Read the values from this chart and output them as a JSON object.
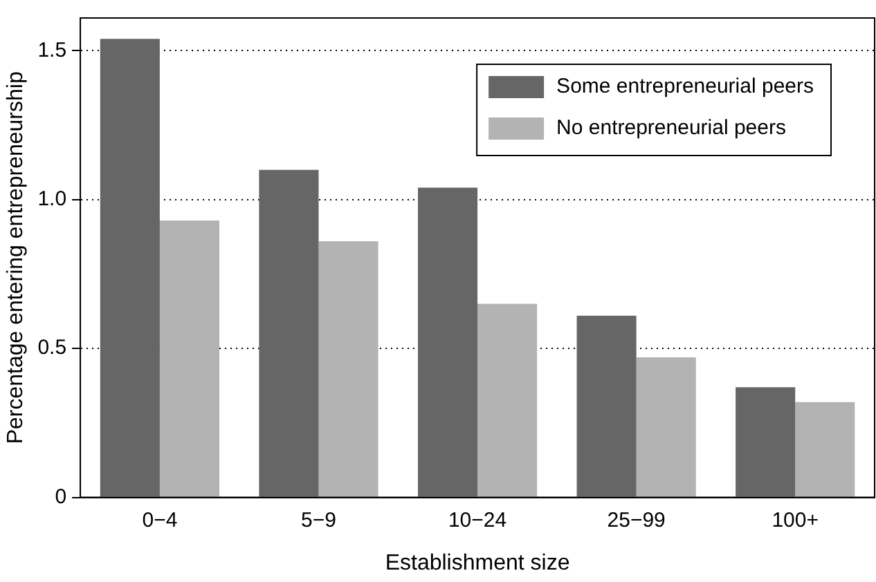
{
  "chart_data": {
    "type": "bar",
    "xlabel": "Establishment size",
    "ylabel": "Percentage entering entrepreneurship",
    "categories": [
      "0−4",
      "5−9",
      "10−24",
      "25−99",
      "100+"
    ],
    "series": [
      {
        "name": "Some entrepreneurial peers",
        "color": "#666666",
        "values": [
          1.54,
          1.1,
          1.04,
          0.61,
          0.37
        ]
      },
      {
        "name": "No entrepreneurial peers",
        "color": "#b3b3b3",
        "values": [
          0.93,
          0.86,
          0.65,
          0.47,
          0.32
        ]
      }
    ],
    "ylim": [
      0,
      1.61
    ],
    "yticks": [
      0,
      0.5,
      {
        "value": 1,
        "label": "1.0"
      },
      1.5
    ],
    "grid": "y",
    "line_style": "dotted",
    "legend": "top right"
  }
}
